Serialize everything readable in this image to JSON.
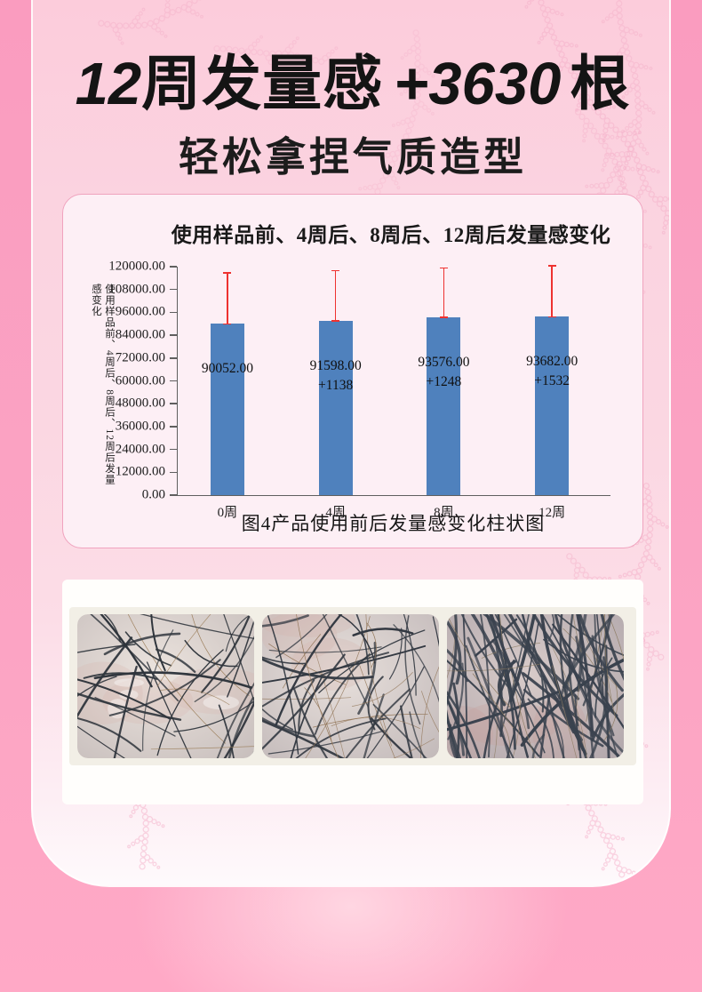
{
  "page": {
    "headline": {
      "num1": "12",
      "text1": "周发量感",
      "num2": "+3630",
      "text2": "根"
    },
    "subtitle": "轻松拿捏气质造型"
  },
  "chart_data": {
    "type": "bar",
    "title": "使用样品前、4周后、8周后、12周后发量感变化",
    "y_axis_label": "使用样品前、4周后、8周后、12周后发量感变化",
    "caption": "图4产品使用前后发量感变化柱状图",
    "categories": [
      "0周",
      "4周",
      "8周",
      "12周"
    ],
    "values": [
      90052,
      91598,
      93576,
      93682
    ],
    "bar_labels": [
      [
        "90052.00"
      ],
      [
        "91598.00",
        "+1138"
      ],
      [
        "93576.00",
        "+1248"
      ],
      [
        "93682.00",
        "+1532"
      ]
    ],
    "error_bar_top": [
      116400,
      117600,
      119000,
      120200
    ],
    "increments": [
      0,
      1138,
      1248,
      1532
    ],
    "ylim": [
      0,
      120000
    ],
    "y_ticks": [
      "120000.00",
      "108000.00",
      "96000.00",
      "84000.00",
      "72000.00",
      "60000.00",
      "48000.00",
      "36000.00",
      "24000.00",
      "12000.00",
      "0.00"
    ],
    "xlabel": "",
    "ylabel": "使用样品前、4周后、8周后、12周后发量感变化",
    "grid": false,
    "legend_position": "none",
    "bar_color": "#4f81bd",
    "error_color": "#ee3230",
    "axis_color": "#5f5f5f"
  },
  "photos": {
    "items": [
      {
        "name": "scalp-microscope-photo-week0",
        "style": "sparse",
        "hairs": 40
      },
      {
        "name": "scalp-microscope-photo-mid",
        "style": "medium",
        "hairs": 54
      },
      {
        "name": "scalp-microscope-photo-week12",
        "style": "dense",
        "hairs": 98
      }
    ]
  },
  "theme": {
    "outer_pink": "#fba3c3",
    "panel_pink": "#fbd5e1",
    "card_pink": "#fdeff5",
    "decor_pink": "#f5b0c9",
    "headline_color": "#141414"
  }
}
